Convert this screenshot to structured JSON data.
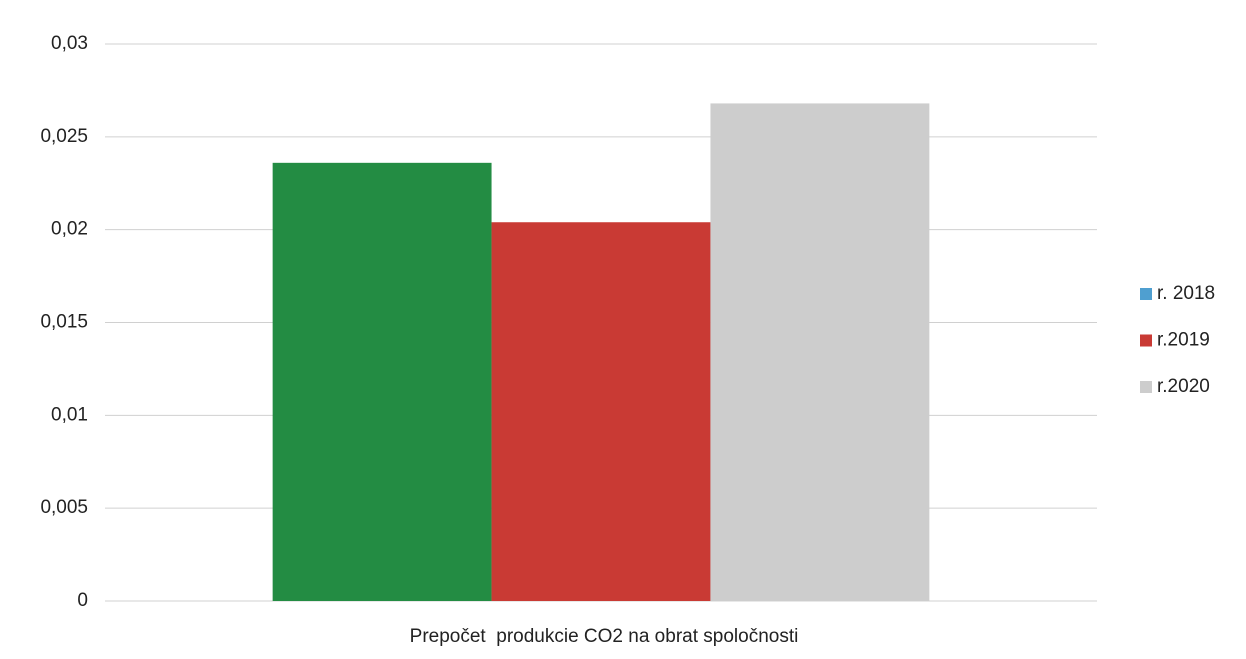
{
  "chart_data": {
    "type": "bar",
    "categories": [
      "Prepočet  produkcie CO2 na obrat spoločnosti"
    ],
    "series": [
      {
        "name": "r. 2018",
        "color": "#238c43",
        "legend_color": "#4f9fd0",
        "values": [
          0.0236
        ]
      },
      {
        "name": "r.2019",
        "color": "#c93a34",
        "values": [
          0.0204
        ]
      },
      {
        "name": "r.2020",
        "color": "#cdcdcd",
        "values": [
          0.0268
        ]
      }
    ],
    "ylim": [
      0,
      0.03
    ],
    "yticks": [
      0,
      {
        "value": 0.005,
        "label": "0,005"
      },
      {
        "value": 0.01,
        "label": "0,01"
      },
      {
        "value": 0.015,
        "label": "0,015"
      },
      {
        "value": 0.02,
        "label": "0,02"
      },
      {
        "value": 0.025,
        "label": "0,025"
      },
      {
        "value": 0.03,
        "label": "0,03"
      }
    ],
    "grid": true,
    "legend": "right"
  }
}
